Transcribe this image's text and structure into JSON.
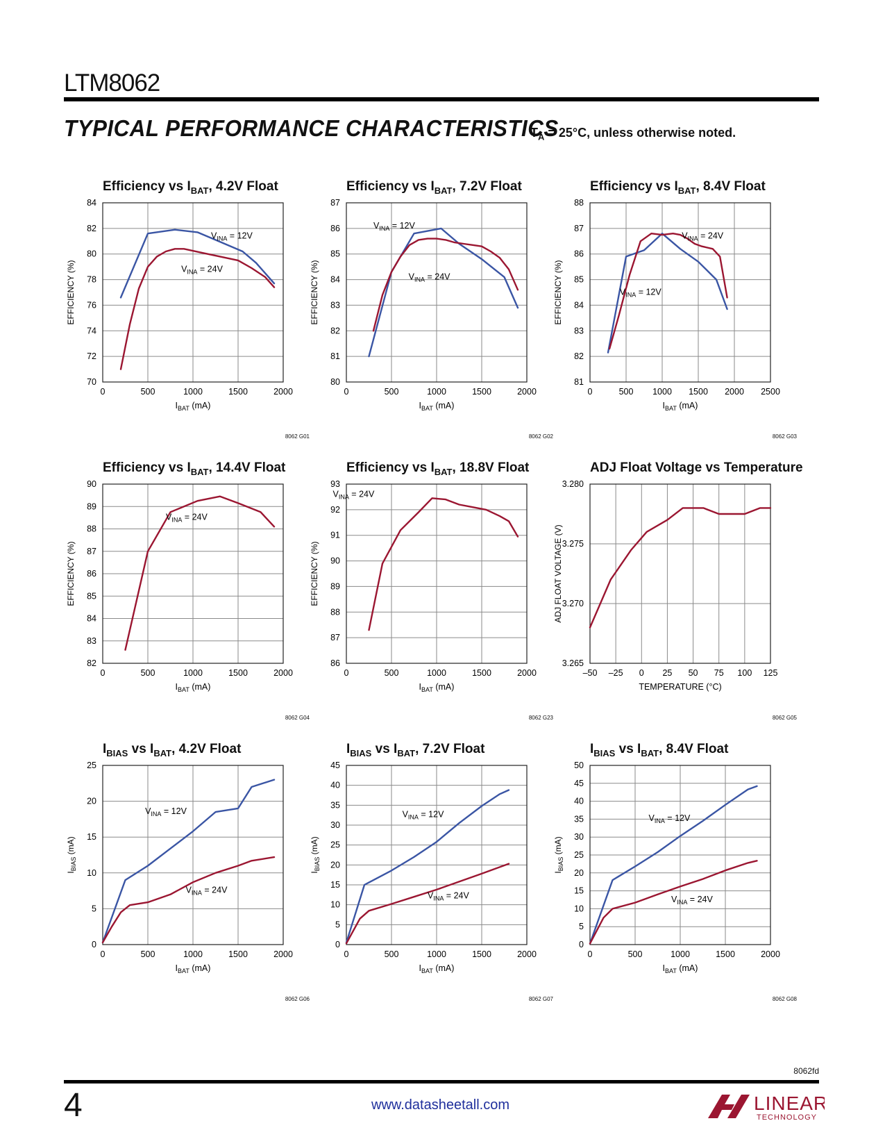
{
  "header": {
    "part_number": "LTM8062",
    "section_title": "TYPICAL PERFORMANCE CHARACTERISTICS",
    "conditions_prefix": "T",
    "conditions_sub": "A",
    "conditions_suffix": " = 25°C, unless otherwise noted."
  },
  "colors": {
    "blue": "#3a55a4",
    "red": "#9b1631",
    "grid": "#8a8a8a"
  },
  "chart_data": [
    {
      "type": "line",
      "title_parts": [
        "Efficiency vs I",
        "BAT",
        ", 4.2V Float"
      ],
      "code": "8062 G01",
      "xlabel": [
        "I",
        "BAT",
        " (mA)"
      ],
      "ylabel": [
        "EFFICIENCY (%)"
      ],
      "xlim": [
        0,
        2000
      ],
      "ylim": [
        70,
        84
      ],
      "xticks": [
        0,
        500,
        1000,
        1500,
        2000
      ],
      "yticks": [
        70,
        72,
        74,
        76,
        78,
        80,
        82,
        84
      ],
      "series": [
        {
          "name": "VINA = 12V",
          "color": "#3a55a4",
          "x": [
            200,
            500,
            800,
            1050,
            1250,
            1550,
            1700,
            1900
          ],
          "y": [
            76.6,
            81.6,
            81.9,
            81.7,
            81.1,
            80.2,
            79.3,
            77.7
          ]
        },
        {
          "name": "VINA = 24V",
          "color": "#9b1631",
          "x": [
            200,
            300,
            400,
            500,
            600,
            700,
            800,
            900,
            1100,
            1300,
            1500,
            1650,
            1800,
            1900
          ],
          "y": [
            71.0,
            74.5,
            77.3,
            79.0,
            79.8,
            80.2,
            80.4,
            80.4,
            80.1,
            79.8,
            79.5,
            78.9,
            78.2,
            77.4
          ]
        }
      ],
      "annotations": [
        {
          "text": [
            "V",
            "INA",
            " = 12V"
          ],
          "x": 1430,
          "y": 81.2
        },
        {
          "text": [
            "V",
            "INA",
            " = 24V"
          ],
          "x": 1100,
          "y": 78.6
        }
      ]
    },
    {
      "type": "line",
      "title_parts": [
        "Efficiency vs I",
        "BAT",
        ", 7.2V Float"
      ],
      "code": "8062 G02",
      "xlabel": [
        "I",
        "BAT",
        " (mA)"
      ],
      "ylabel": [
        "EFFICIENCY (%)"
      ],
      "xlim": [
        0,
        2000
      ],
      "ylim": [
        80,
        87
      ],
      "xticks": [
        0,
        500,
        1000,
        1500,
        2000
      ],
      "yticks": [
        80,
        81,
        82,
        83,
        84,
        85,
        86,
        87
      ],
      "series": [
        {
          "name": "VINA = 12V",
          "color": "#3a55a4",
          "x": [
            250,
            500,
            750,
            1050,
            1250,
            1500,
            1750,
            1900
          ],
          "y": [
            81.0,
            84.3,
            85.8,
            86.0,
            85.4,
            84.8,
            84.1,
            82.9
          ]
        },
        {
          "name": "VINA = 24V",
          "color": "#9b1631",
          "x": [
            300,
            400,
            500,
            600,
            700,
            800,
            900,
            1000,
            1100,
            1200,
            1300,
            1400,
            1500,
            1600,
            1700,
            1800,
            1900
          ],
          "y": [
            82.0,
            83.4,
            84.3,
            84.9,
            85.35,
            85.55,
            85.6,
            85.6,
            85.55,
            85.45,
            85.4,
            85.35,
            85.3,
            85.1,
            84.85,
            84.4,
            83.6
          ]
        }
      ],
      "annotations": [
        {
          "text": [
            "V",
            "INA",
            " = 12V"
          ],
          "x": 530,
          "y": 86.0
        },
        {
          "text": [
            "V",
            "INA",
            " = 24V"
          ],
          "x": 920,
          "y": 84.0
        }
      ]
    },
    {
      "type": "line",
      "title_parts": [
        "Efficiency vs I",
        "BAT",
        ", 8.4V Float"
      ],
      "code": "8062 G03",
      "xlabel": [
        "I",
        "BAT",
        " (mA)"
      ],
      "ylabel": [
        "EFFICIENCY (%)"
      ],
      "xlim": [
        0,
        2500
      ],
      "ylim": [
        81,
        88
      ],
      "xticks": [
        0,
        500,
        1000,
        1500,
        2000,
        2500
      ],
      "yticks": [
        81,
        82,
        83,
        84,
        85,
        86,
        87,
        88
      ],
      "series": [
        {
          "name": "VINA = 12V",
          "color": "#3a55a4",
          "x": [
            250,
            500,
            750,
            1000,
            1250,
            1500,
            1750,
            1900
          ],
          "y": [
            82.15,
            85.9,
            86.15,
            86.8,
            86.2,
            85.7,
            85.0,
            83.85
          ]
        },
        {
          "name": "VINA = 24V",
          "color": "#9b1631",
          "x": [
            270,
            400,
            550,
            700,
            850,
            1000,
            1150,
            1250,
            1350,
            1450,
            1550,
            1700,
            1800,
            1900
          ],
          "y": [
            82.3,
            83.6,
            85.2,
            86.5,
            86.8,
            86.75,
            86.8,
            86.75,
            86.6,
            86.4,
            86.3,
            86.2,
            85.9,
            84.3
          ]
        }
      ],
      "annotations": [
        {
          "text": [
            "V",
            "INA",
            " = 24V"
          ],
          "x": 1560,
          "y": 86.6
        },
        {
          "text": [
            "V",
            "INA",
            " = 12V"
          ],
          "x": 700,
          "y": 84.4
        }
      ]
    },
    {
      "type": "line",
      "title_parts": [
        "Efficiency vs I",
        "BAT",
        ", 14.4V Float"
      ],
      "code": "8062 G04",
      "xlabel": [
        "I",
        "BAT",
        " (mA)"
      ],
      "ylabel": [
        "EFFICIENCY (%)"
      ],
      "xlim": [
        0,
        2000
      ],
      "ylim": [
        82,
        90
      ],
      "xticks": [
        0,
        500,
        1000,
        1500,
        2000
      ],
      "yticks": [
        82,
        83,
        84,
        85,
        86,
        87,
        88,
        89,
        90
      ],
      "series": [
        {
          "name": "VINA = 24V",
          "color": "#9b1631",
          "x": [
            250,
            500,
            750,
            1050,
            1300,
            1500,
            1750,
            1900
          ],
          "y": [
            82.6,
            87.0,
            88.75,
            89.25,
            89.45,
            89.15,
            88.75,
            88.1
          ]
        }
      ],
      "annotations": [
        {
          "text": [
            "V",
            "INA",
            " = 24V"
          ],
          "x": 930,
          "y": 88.4
        }
      ]
    },
    {
      "type": "line",
      "title_parts": [
        "Efficiency vs I",
        "BAT",
        ", 18.8V Float"
      ],
      "code": "8062 G23",
      "xlabel": [
        "I",
        "BAT",
        " (mA)"
      ],
      "ylabel": [
        "EFFICIENCY (%)"
      ],
      "xlim": [
        0,
        2000
      ],
      "ylim": [
        86,
        93
      ],
      "xticks": [
        0,
        500,
        1000,
        1500,
        2000
      ],
      "yticks": [
        86,
        87,
        88,
        89,
        90,
        91,
        92,
        93
      ],
      "series": [
        {
          "name": "VINA = 24V",
          "color": "#9b1631",
          "x": [
            250,
            400,
            600,
            800,
            950,
            1100,
            1250,
            1400,
            1550,
            1700,
            1800,
            1900
          ],
          "y": [
            87.3,
            89.9,
            91.2,
            91.9,
            92.45,
            92.4,
            92.2,
            92.1,
            92.0,
            91.75,
            91.55,
            90.95
          ]
        }
      ],
      "annotations": [
        {
          "text": [
            "V",
            "INA",
            " = 24V"
          ],
          "x": 80,
          "y": 92.5
        }
      ]
    },
    {
      "type": "line",
      "title_parts": [
        "ADJ Float Voltage vs Temperature"
      ],
      "code": "8062 G05",
      "xlabel": [
        "TEMPERATURE (°C)"
      ],
      "ylabel": [
        "ADJ FLOAT VOLTAGE (V)"
      ],
      "xlim": [
        -50,
        125
      ],
      "ylim": [
        3.265,
        3.28
      ],
      "xticks": [
        -50,
        -25,
        0,
        25,
        50,
        75,
        100,
        125
      ],
      "yticks": [
        3.265,
        3.27,
        3.275,
        3.28
      ],
      "tick_labels_x": [
        "–50",
        "–25",
        "0",
        "25",
        "50",
        "75",
        "100",
        "125"
      ],
      "tick_labels_y": [
        "3.265",
        "3.270",
        "3.275",
        "3.280"
      ],
      "series": [
        {
          "name": "",
          "color": "#9b1631",
          "x": [
            -50,
            -30,
            -10,
            5,
            25,
            40,
            60,
            75,
            100,
            115,
            125
          ],
          "y": [
            3.268,
            3.272,
            3.2745,
            3.276,
            3.277,
            3.278,
            3.278,
            3.2775,
            3.2775,
            3.278,
            3.278
          ]
        }
      ],
      "annotations": []
    },
    {
      "type": "line",
      "title_parts": [
        "I",
        "BIAS",
        " vs I",
        "BAT",
        ", 4.2V Float"
      ],
      "code": "8062 G06",
      "xlabel": [
        "I",
        "BAT",
        " (mA)"
      ],
      "ylabel": [
        "I",
        "BIAS",
        " (mA)"
      ],
      "xlim": [
        0,
        2000
      ],
      "ylim": [
        0,
        25
      ],
      "xticks": [
        0,
        500,
        1000,
        1500,
        2000
      ],
      "yticks": [
        0,
        5,
        10,
        15,
        20,
        25
      ],
      "series": [
        {
          "name": "VINA = 12V",
          "color": "#3a55a4",
          "x": [
            0,
            250,
            500,
            750,
            1000,
            1250,
            1500,
            1650,
            1900
          ],
          "y": [
            0.3,
            9.0,
            11.0,
            13.4,
            15.8,
            18.5,
            19.0,
            22.0,
            23.0
          ]
        },
        {
          "name": "VINA = 24V",
          "color": "#9b1631",
          "x": [
            0,
            100,
            200,
            300,
            500,
            750,
            1000,
            1250,
            1500,
            1650,
            1900
          ],
          "y": [
            0.3,
            2.5,
            4.5,
            5.5,
            5.9,
            7.0,
            8.7,
            10.0,
            11.0,
            11.7,
            12.2
          ]
        }
      ],
      "annotations": [
        {
          "text": [
            "V",
            "INA",
            " = 12V"
          ],
          "x": 700,
          "y": 18.2
        },
        {
          "text": [
            "V",
            "INA",
            " = 24V"
          ],
          "x": 1150,
          "y": 7.2
        }
      ]
    },
    {
      "type": "line",
      "title_parts": [
        "I",
        "BIAS",
        " vs I",
        "BAT",
        ", 7.2V Float"
      ],
      "code": "8062 G07",
      "xlabel": [
        "I",
        "BAT",
        " (mA)"
      ],
      "ylabel": [
        "I",
        "BIAS",
        " (mA)"
      ],
      "xlim": [
        0,
        2000
      ],
      "ylim": [
        0,
        45
      ],
      "xticks": [
        0,
        500,
        1000,
        1500,
        2000
      ],
      "yticks": [
        0,
        5,
        10,
        15,
        20,
        25,
        30,
        35,
        40,
        45
      ],
      "series": [
        {
          "name": "VINA = 12V",
          "color": "#3a55a4",
          "x": [
            0,
            200,
            500,
            750,
            1000,
            1250,
            1500,
            1700,
            1800
          ],
          "y": [
            0.5,
            15.0,
            18.6,
            22.0,
            25.8,
            30.5,
            34.8,
            37.8,
            38.8
          ]
        },
        {
          "name": "VINA = 24V",
          "color": "#9b1631",
          "x": [
            0,
            150,
            250,
            500,
            750,
            1000,
            1250,
            1500,
            1800
          ],
          "y": [
            0.3,
            6.5,
            8.5,
            10.2,
            12.0,
            13.8,
            15.8,
            17.8,
            20.3
          ]
        }
      ],
      "annotations": [
        {
          "text": [
            "V",
            "INA",
            " = 12V"
          ],
          "x": 850,
          "y": 32.0
        },
        {
          "text": [
            "V",
            "INA",
            " = 24V"
          ],
          "x": 1130,
          "y": 11.6
        }
      ]
    },
    {
      "type": "line",
      "title_parts": [
        "I",
        "BIAS",
        " vs I",
        "BAT",
        ", 8.4V Float"
      ],
      "code": "8062 G08",
      "xlabel": [
        "I",
        "BAT",
        " (mA)"
      ],
      "ylabel": [
        "I",
        "BIAS",
        " (mA)"
      ],
      "xlim": [
        0,
        2000
      ],
      "ylim": [
        0,
        50
      ],
      "xticks": [
        0,
        500,
        1000,
        1500,
        2000
      ],
      "yticks": [
        0,
        5,
        10,
        15,
        20,
        25,
        30,
        35,
        40,
        45,
        50
      ],
      "series": [
        {
          "name": "VINA = 12V",
          "color": "#3a55a4",
          "x": [
            0,
            250,
            500,
            750,
            1000,
            1250,
            1500,
            1750,
            1850
          ],
          "y": [
            0.3,
            18.0,
            21.8,
            25.8,
            30.3,
            34.5,
            39.0,
            43.3,
            44.2
          ]
        },
        {
          "name": "VINA = 24V",
          "color": "#9b1631",
          "x": [
            0,
            150,
            250,
            500,
            750,
            1000,
            1250,
            1500,
            1750,
            1850
          ],
          "y": [
            0.3,
            7.5,
            10.0,
            11.7,
            14.0,
            16.2,
            18.3,
            20.7,
            22.8,
            23.4
          ]
        }
      ],
      "annotations": [
        {
          "text": [
            "V",
            "INA",
            " = 12V"
          ],
          "x": 880,
          "y": 34.5
        },
        {
          "text": [
            "V",
            "INA",
            " = 24V"
          ],
          "x": 1130,
          "y": 11.8
        }
      ]
    }
  ],
  "footer": {
    "doc_code": "8062fd",
    "page_number": "4",
    "website": "www.datasheetall.com",
    "logo_word": "LINEAR",
    "logo_sub": "TECHNOLOGY"
  }
}
